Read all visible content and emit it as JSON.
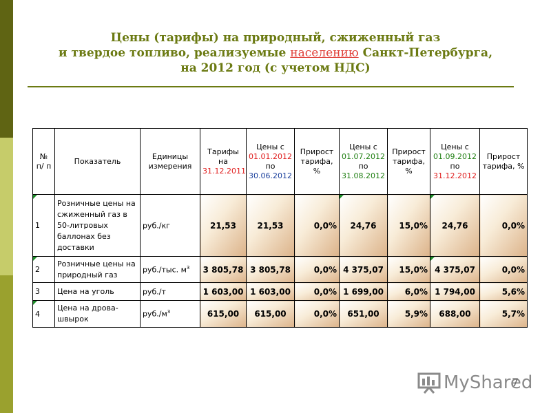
{
  "title": {
    "line1": "Цены (тарифы) на природный, сжиженный газ",
    "line2_before": "и твердое топливо, реализуемые ",
    "line2_highlight": "населению",
    "line2_after": " Санкт-Петербурга,",
    "line3": "на 2012 год  (с учетом НДС)"
  },
  "table": {
    "headers": {
      "no": "№ п/ п",
      "indicator": "Показатель",
      "units": "Единицы измерения",
      "tariff_label": "Тарифы на",
      "tariff_date": "31.12.2011",
      "p1_label": "Цены с",
      "p1_from": "01.01.2012",
      "p1_po": "по",
      "p1_to": "30.06.2012",
      "growth": "Прирост тарифа, %",
      "p2_label": "Цены с",
      "p2_from": "01.07.2012",
      "p2_po": "по",
      "p2_to": "31.08.2012",
      "p3_label": "Цены с",
      "p3_from": "01.09.2012",
      "p3_po": "по",
      "p3_to": "31.12.2012"
    },
    "rows": [
      {
        "no": "1",
        "indicator": "Розничные цены на сжиженный газ в 50-литровых баллонах без доставки",
        "unit": "руб./кг",
        "unit_sup": "",
        "tariff": "21,53",
        "p1": "21,53",
        "g1": "0,0%",
        "p2": "24,76",
        "g2": "15,0%",
        "p3": "24,76",
        "g3": "0,0%"
      },
      {
        "no": "2",
        "indicator": "Розничные цены на природный газ",
        "unit": "руб./тыс. м",
        "unit_sup": "3",
        "tariff": "3 805,78",
        "p1": "3 805,78",
        "g1": "0,0%",
        "p2": "4 375,07",
        "g2": "15,0%",
        "p3": "4 375,07",
        "g3": "0,0%"
      },
      {
        "no": "3",
        "indicator": "Цена на уголь",
        "unit": "руб./т",
        "unit_sup": "",
        "tariff": "1 603,00",
        "p1": "1 603,00",
        "g1": "0,0%",
        "p2": "1 699,00",
        "g2": "6,0%",
        "p3": "1 794,00",
        "g3": "5,6%"
      },
      {
        "no": "4",
        "indicator": "Цена на дрова-швырок",
        "unit": "руб./м",
        "unit_sup": "3",
        "tariff": "615,00",
        "p1": "615,00",
        "g1": "0,0%",
        "p2": "651,00",
        "g2": "5,9%",
        "p3": "688,00",
        "g3": "5,7%"
      }
    ]
  },
  "footer": {
    "logo_text": "MyShared",
    "page_number": "7"
  },
  "colors": {
    "title": "#6b7a12",
    "highlight": "#e0403a",
    "date_red": "#e01b1b",
    "date_green": "#1f7f12"
  }
}
